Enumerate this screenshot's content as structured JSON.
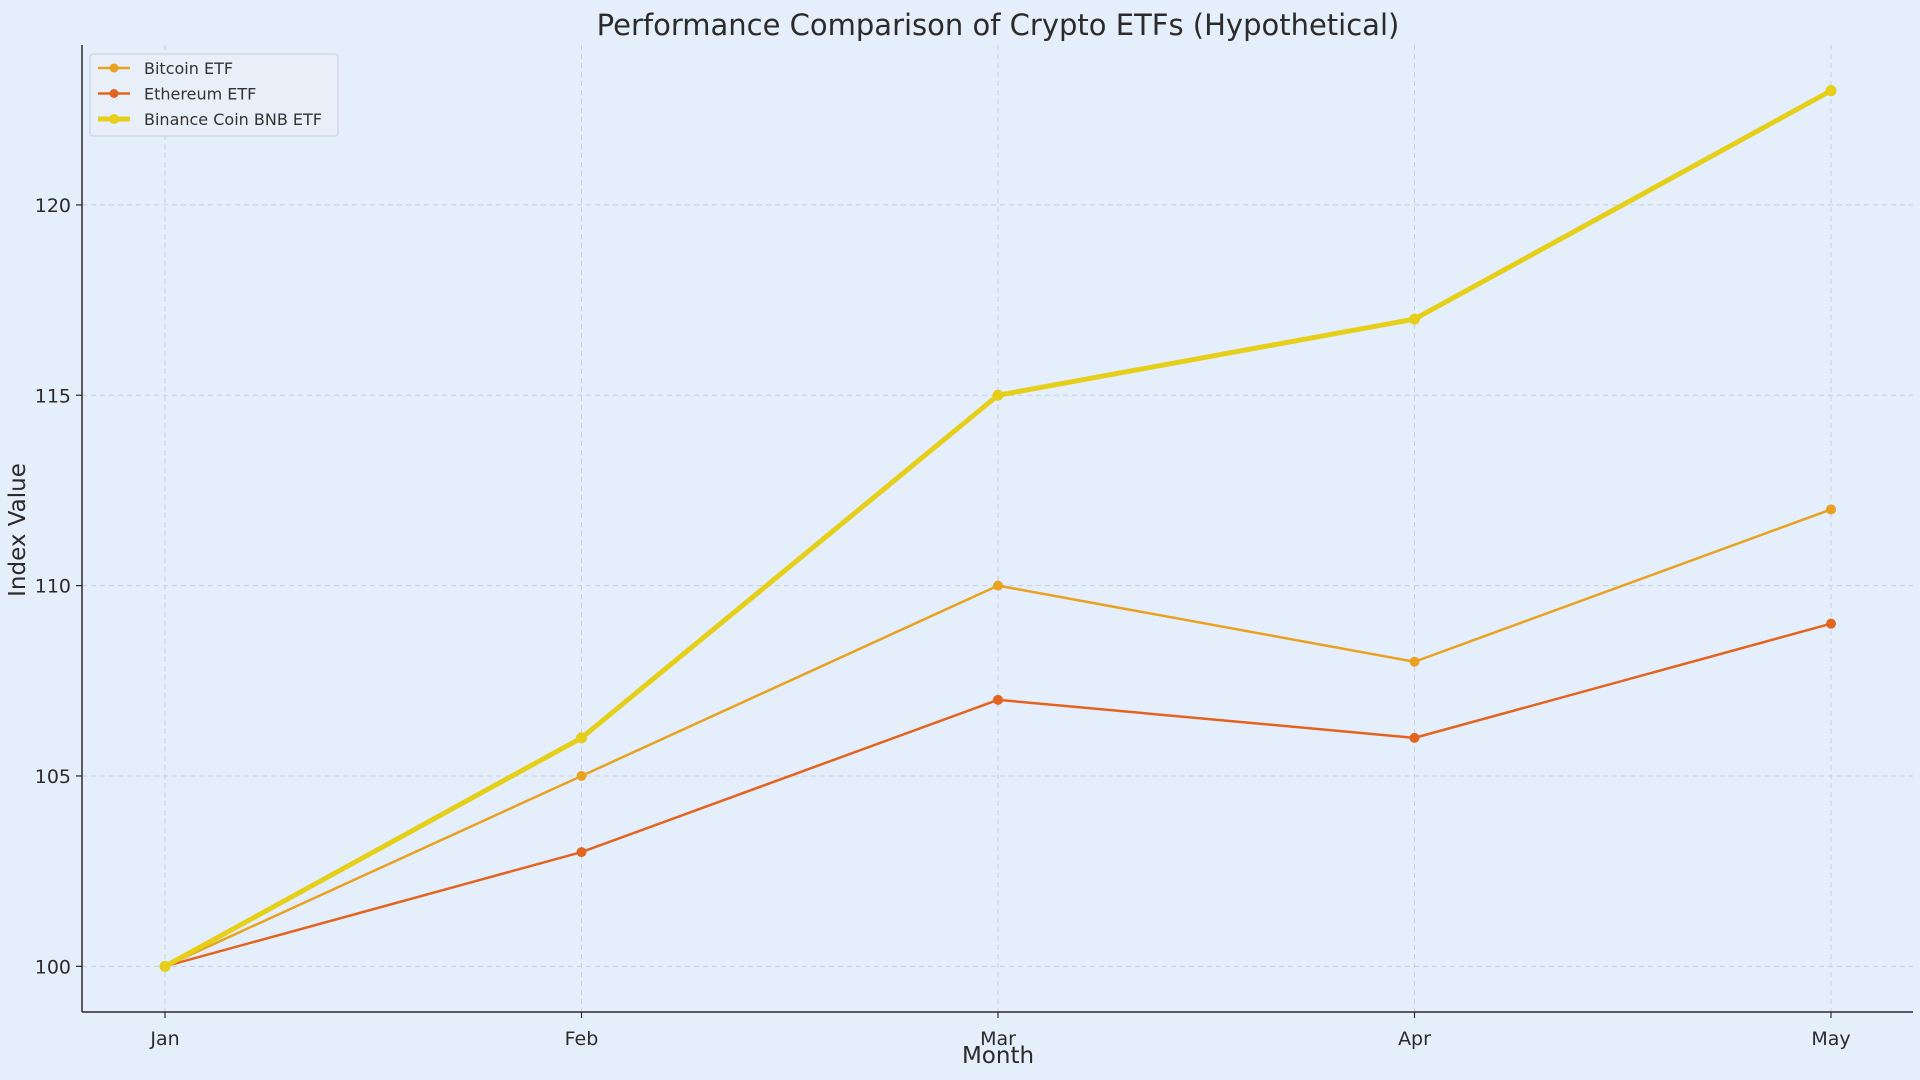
{
  "chart_data": {
    "type": "line",
    "title": "Performance Comparison of Crypto ETFs (Hypothetical)",
    "xlabel": "Month",
    "ylabel": "Index Value",
    "categories": [
      "Jan",
      "Feb",
      "Mar",
      "Apr",
      "May"
    ],
    "y_ticks": [
      100,
      105,
      110,
      115,
      120
    ],
    "ylim": [
      98.8,
      124.2
    ],
    "grid": true,
    "legend_position": "top-left",
    "series": [
      {
        "name": "Bitcoin ETF",
        "values": [
          100,
          105,
          110,
          108,
          112
        ],
        "color": "#e8a21f",
        "emphasis": false
      },
      {
        "name": "Ethereum ETF",
        "values": [
          100,
          103,
          107,
          106,
          109
        ],
        "color": "#e2641e",
        "emphasis": false
      },
      {
        "name": "Binance Coin BNB ETF",
        "values": [
          100,
          106,
          115,
          117,
          123
        ],
        "color": "#e6cf19",
        "emphasis": true
      }
    ]
  }
}
